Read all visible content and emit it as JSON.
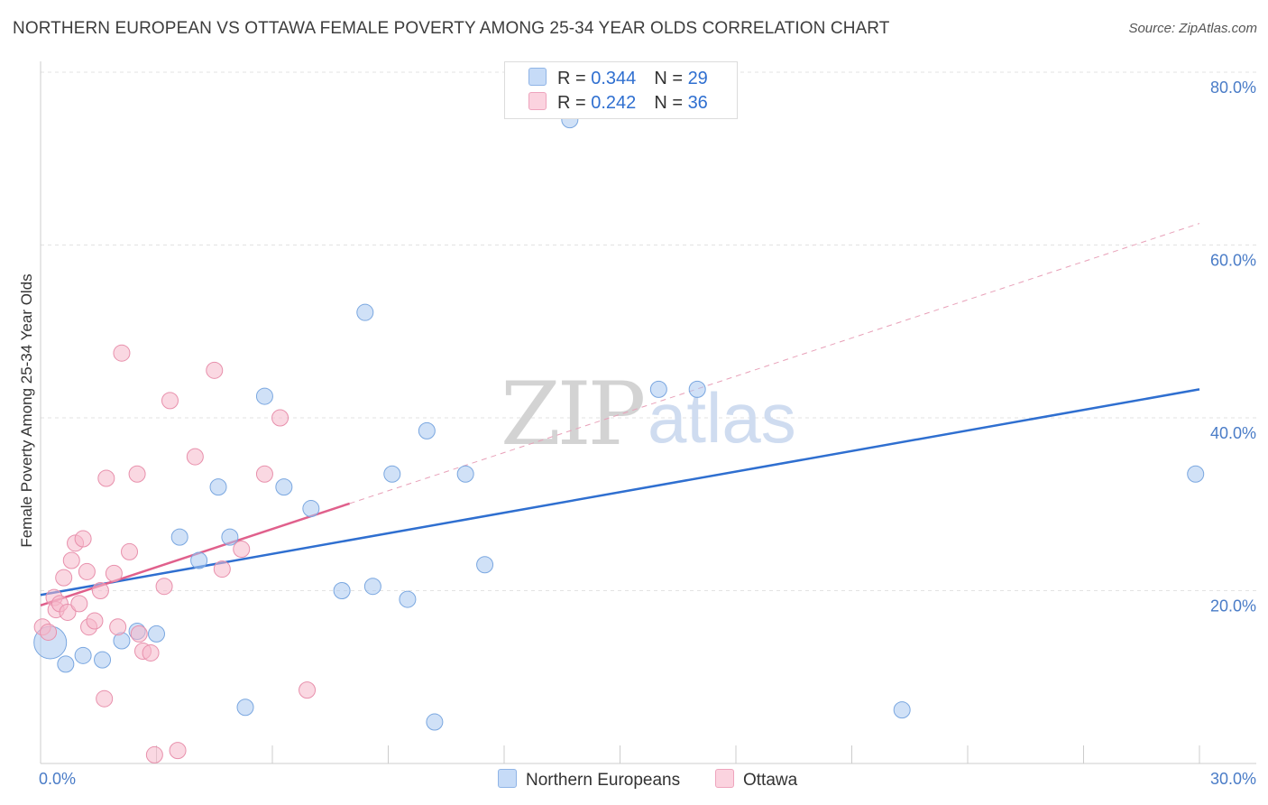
{
  "title": "NORTHERN EUROPEAN VS OTTAWA FEMALE POVERTY AMONG 25-34 YEAR OLDS CORRELATION CHART",
  "source": "Source: ZipAtlas.com",
  "legend": {
    "r_label": "R = ",
    "n_label": "N = ",
    "rows": [
      {
        "name": "Northern Europeans",
        "r": "0.344",
        "n": "29",
        "color": "#a9c8f0"
      },
      {
        "name": "Ottawa",
        "r": "0.242",
        "n": "36",
        "color": "#f5b8cb"
      }
    ]
  },
  "watermark": {
    "zip": "ZIP",
    "atlas": "atlas"
  },
  "chart_data": {
    "type": "scatter",
    "xlabel": "",
    "ylabel": "Female Poverty Among 25-34 Year Olds",
    "xlim": [
      0,
      30
    ],
    "ylim": [
      0,
      80
    ],
    "x_tick_labels": [
      "0.0%",
      "30.0%"
    ],
    "y_ticks": [
      20,
      40,
      60,
      80
    ],
    "y_tick_labels": [
      "20.0%",
      "40.0%",
      "60.0%",
      "80.0%"
    ],
    "grid": true,
    "series": [
      {
        "name": "Northern Europeans",
        "color": "#a9c8f0",
        "stroke": "#7aa7e0",
        "trend_color": "#2f6fd0",
        "trend": {
          "x0": 0,
          "y0": 19.5,
          "x1": 30,
          "y1": 43.3,
          "dashed_from": null
        },
        "points": [
          {
            "x": 0.25,
            "y": 14.0,
            "big": true
          },
          {
            "x": 0.65,
            "y": 11.5
          },
          {
            "x": 1.1,
            "y": 12.5
          },
          {
            "x": 1.6,
            "y": 12.0
          },
          {
            "x": 2.1,
            "y": 14.2
          },
          {
            "x": 2.5,
            "y": 15.3
          },
          {
            "x": 3.0,
            "y": 15.0
          },
          {
            "x": 3.6,
            "y": 26.2
          },
          {
            "x": 4.1,
            "y": 23.5
          },
          {
            "x": 4.6,
            "y": 32.0
          },
          {
            "x": 4.9,
            "y": 26.2
          },
          {
            "x": 5.3,
            "y": 6.5
          },
          {
            "x": 5.8,
            "y": 42.5
          },
          {
            "x": 6.3,
            "y": 32.0
          },
          {
            "x": 7.0,
            "y": 29.5
          },
          {
            "x": 7.8,
            "y": 20.0
          },
          {
            "x": 8.4,
            "y": 52.2
          },
          {
            "x": 8.6,
            "y": 20.5
          },
          {
            "x": 9.1,
            "y": 33.5
          },
          {
            "x": 9.5,
            "y": 19.0
          },
          {
            "x": 10.0,
            "y": 38.5
          },
          {
            "x": 10.2,
            "y": 4.8
          },
          {
            "x": 11.0,
            "y": 33.5
          },
          {
            "x": 11.5,
            "y": 23.0
          },
          {
            "x": 13.7,
            "y": 74.5
          },
          {
            "x": 16.0,
            "y": 43.3
          },
          {
            "x": 17.0,
            "y": 43.3
          },
          {
            "x": 22.3,
            "y": 6.2
          },
          {
            "x": 29.9,
            "y": 33.5
          }
        ]
      },
      {
        "name": "Ottawa",
        "color": "#f5b8cb",
        "stroke": "#e890ac",
        "trend_color": "#e0608c",
        "trend": {
          "x0": 0,
          "y0": 18.3,
          "x1": 30,
          "y1": 62.5,
          "solid_until": 8.0
        },
        "points": [
          {
            "x": 0.05,
            "y": 15.8
          },
          {
            "x": 0.2,
            "y": 15.2
          },
          {
            "x": 0.35,
            "y": 19.2
          },
          {
            "x": 0.4,
            "y": 17.8
          },
          {
            "x": 0.5,
            "y": 18.5
          },
          {
            "x": 0.6,
            "y": 21.5
          },
          {
            "x": 0.7,
            "y": 17.5
          },
          {
            "x": 0.8,
            "y": 23.5
          },
          {
            "x": 0.9,
            "y": 25.5
          },
          {
            "x": 1.0,
            "y": 18.5
          },
          {
            "x": 1.1,
            "y": 26.0
          },
          {
            "x": 1.2,
            "y": 22.2
          },
          {
            "x": 1.25,
            "y": 15.8
          },
          {
            "x": 1.4,
            "y": 16.5
          },
          {
            "x": 1.55,
            "y": 20.0
          },
          {
            "x": 1.65,
            "y": 7.5
          },
          {
            "x": 1.7,
            "y": 33.0
          },
          {
            "x": 1.9,
            "y": 22.0
          },
          {
            "x": 2.0,
            "y": 15.8
          },
          {
            "x": 2.1,
            "y": 47.5
          },
          {
            "x": 2.3,
            "y": 24.5
          },
          {
            "x": 2.5,
            "y": 33.5
          },
          {
            "x": 2.55,
            "y": 15.0
          },
          {
            "x": 2.65,
            "y": 13.0
          },
          {
            "x": 2.85,
            "y": 12.8
          },
          {
            "x": 2.95,
            "y": 1.0
          },
          {
            "x": 3.2,
            "y": 20.5
          },
          {
            "x": 3.35,
            "y": 42.0
          },
          {
            "x": 3.55,
            "y": 1.5
          },
          {
            "x": 4.0,
            "y": 35.5
          },
          {
            "x": 4.5,
            "y": 45.5
          },
          {
            "x": 4.7,
            "y": 22.5
          },
          {
            "x": 5.2,
            "y": 24.8
          },
          {
            "x": 5.8,
            "y": 33.5
          },
          {
            "x": 6.2,
            "y": 40.0
          },
          {
            "x": 6.9,
            "y": 8.5
          }
        ]
      }
    ]
  }
}
